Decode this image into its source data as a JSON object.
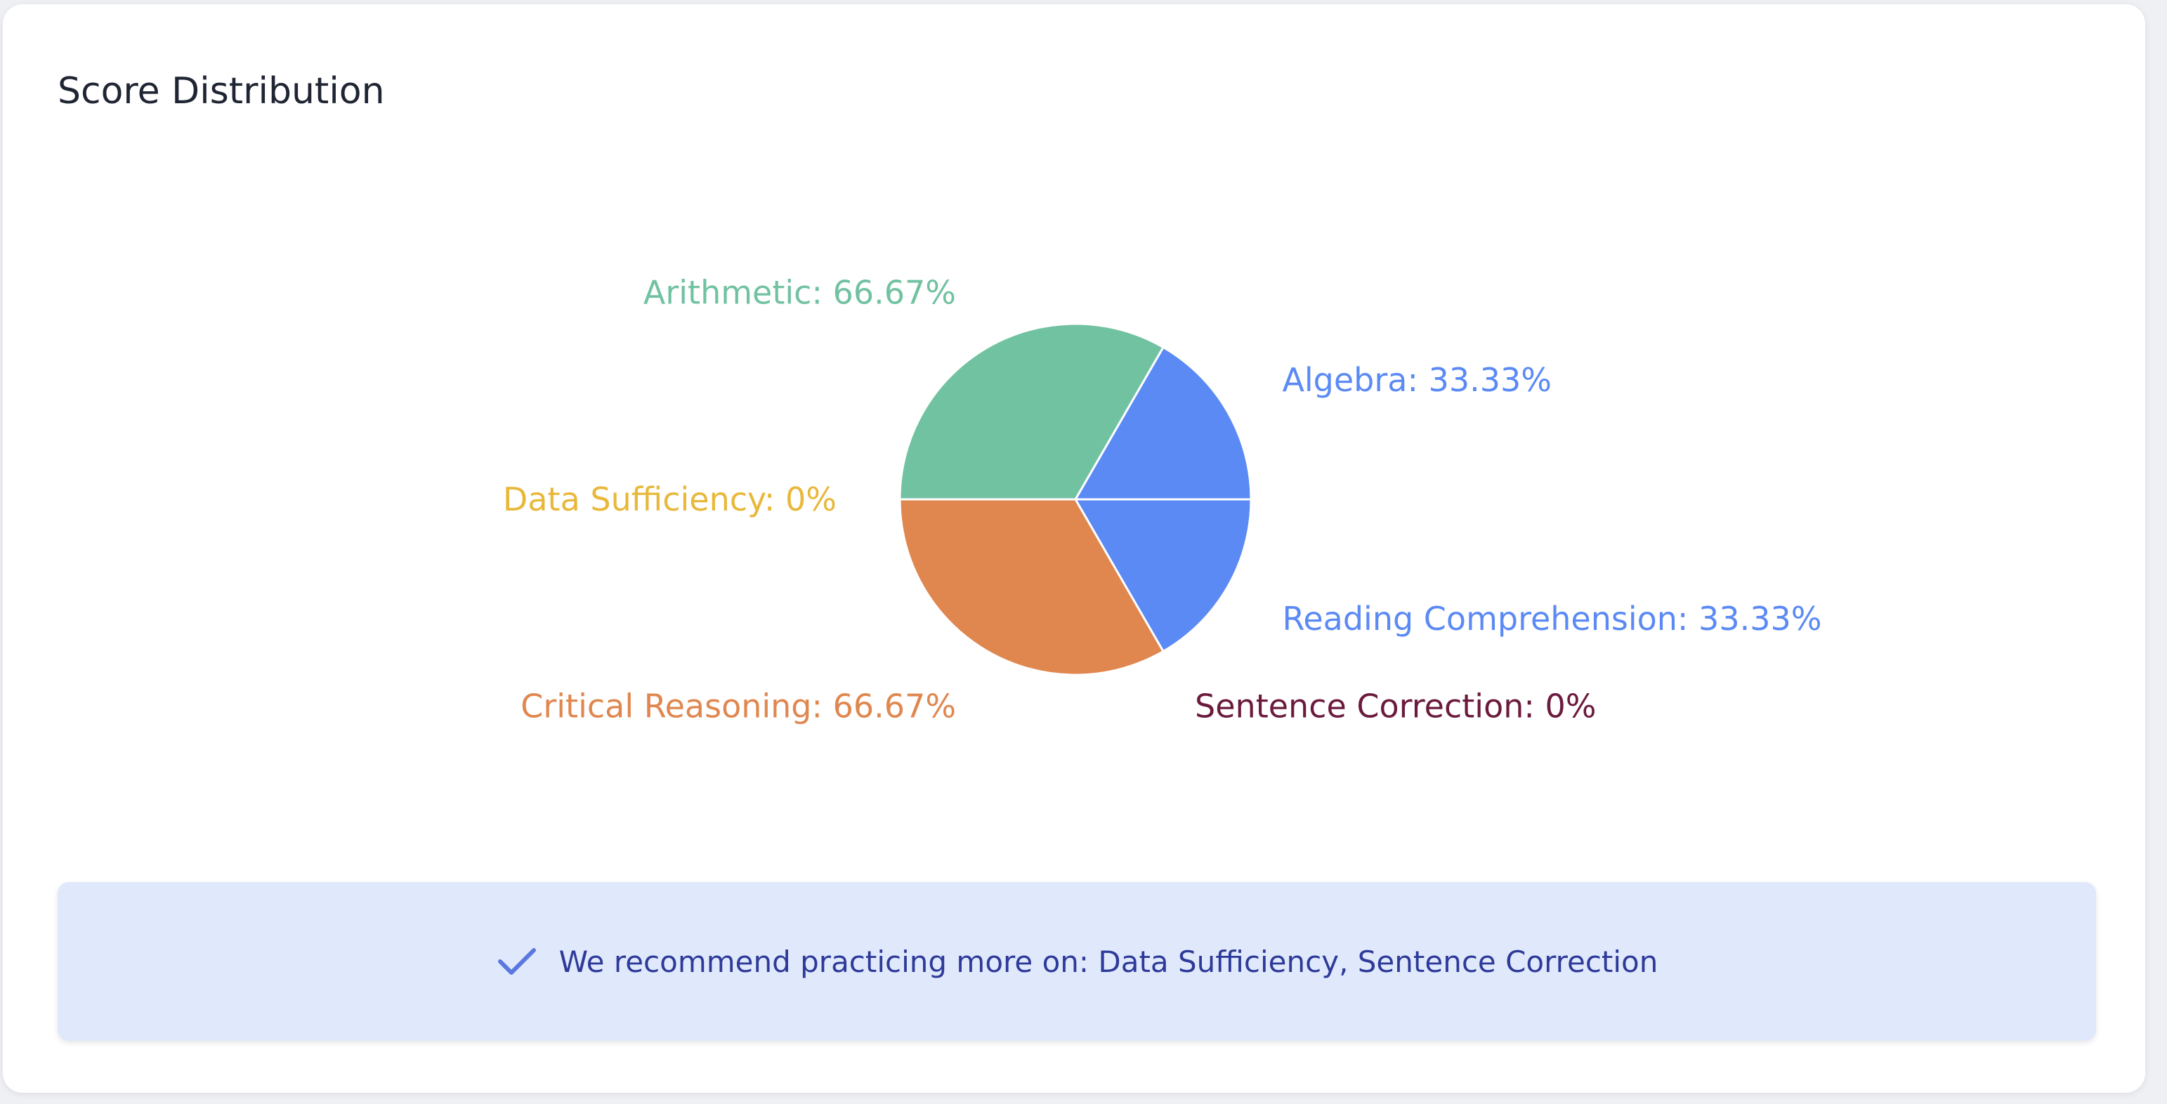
{
  "card": {
    "title": "Score Distribution"
  },
  "recommendation": {
    "icon": "check-icon",
    "text": "We recommend practicing more on: Data Sufficiency, Sentence Correction"
  },
  "chart_data": {
    "type": "pie",
    "title": "Score Distribution",
    "legend": "none",
    "slices": [
      {
        "label": "Algebra: 33.33%",
        "category": "Algebra",
        "value": 33.33,
        "color": "#5b8af5"
      },
      {
        "label": "Reading Comprehension: 33.33%",
        "category": "Reading Comprehension",
        "value": 33.33,
        "color": "#5b8af5"
      },
      {
        "label": "Sentence Correction: 0%",
        "category": "Sentence Correction",
        "value": 0,
        "color": "#6b1a3d"
      },
      {
        "label": "Critical Reasoning: 66.67%",
        "category": "Critical Reasoning",
        "value": 66.67,
        "color": "#e0874f"
      },
      {
        "label": "Data Sufficiency: 0%",
        "category": "Data Sufficiency",
        "value": 0,
        "color": "#e8b83a"
      },
      {
        "label": "Arithmetic: 66.67%",
        "category": "Arithmetic",
        "value": 66.67,
        "color": "#71c2a1"
      }
    ]
  }
}
